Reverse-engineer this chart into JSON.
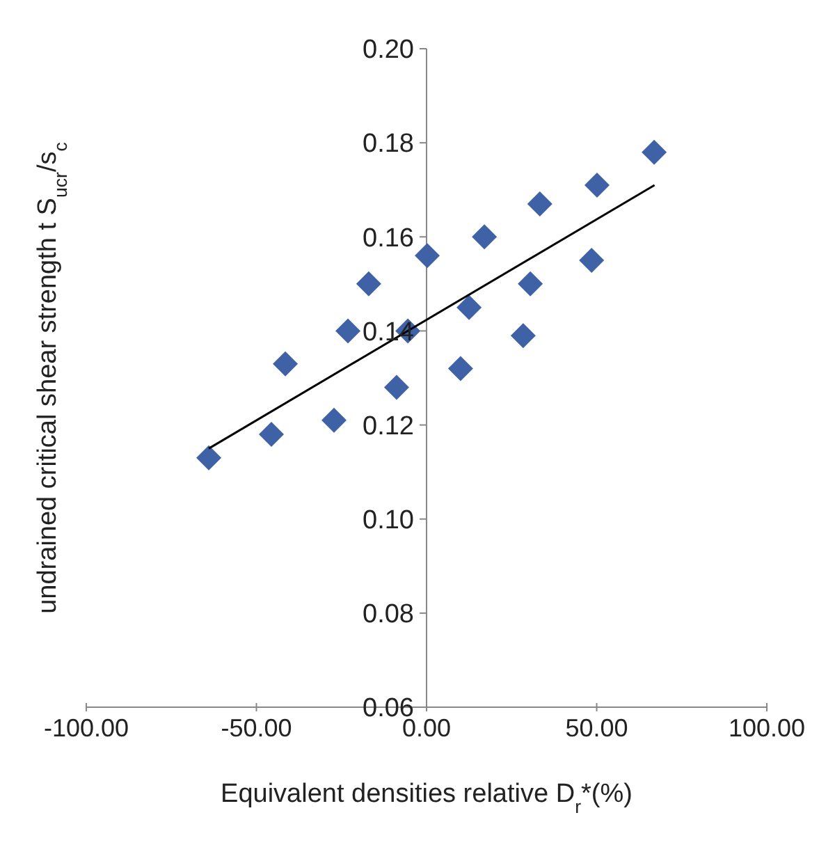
{
  "chart_data": {
    "type": "scatter",
    "xlabel": "Equivalent densities relative D$_{r}$*(%)",
    "ylabel": "undrained critical shear strength t S$_{ucr}$/s$_{c}$",
    "xlim": [
      -100,
      100
    ],
    "ylim": [
      0.06,
      0.2
    ],
    "xticks": [
      {
        "value": -100,
        "label": "-100.00"
      },
      {
        "value": -50,
        "label": "-50.00"
      },
      {
        "value": 0,
        "label": "0.00"
      },
      {
        "value": 50,
        "label": "50.00"
      },
      {
        "value": 100,
        "label": "100.00"
      }
    ],
    "yticks": [
      {
        "value": 0.06,
        "label": "0.06"
      },
      {
        "value": 0.08,
        "label": "0.08"
      },
      {
        "value": 0.1,
        "label": "0.10"
      },
      {
        "value": 0.12,
        "label": "0.12"
      },
      {
        "value": 0.14,
        "label": "0.14"
      },
      {
        "value": 0.16,
        "label": "0.16"
      },
      {
        "value": 0.18,
        "label": "0.18"
      },
      {
        "value": 0.2,
        "label": "0.20"
      }
    ],
    "grid": false,
    "legend": false,
    "marker": "diamond",
    "series": [
      {
        "color": "#3f62a6",
        "x": [
          -64,
          -45.6,
          -41.5,
          -27.2,
          -23.1,
          -17,
          -8.8,
          -5.5,
          0.2,
          10,
          12.5,
          17,
          28.4,
          30.5,
          33.3,
          48.5,
          50.1,
          66.9
        ],
        "values": [
          0.113,
          0.118,
          0.133,
          0.121,
          0.14,
          0.15,
          0.128,
          0.14,
          0.156,
          0.132,
          0.145,
          0.16,
          0.139,
          0.15,
          0.167,
          0.155,
          0.171,
          0.178
        ]
      },
      {
        "type": "line",
        "color": "#000000",
        "marker": "none",
        "x": [
          -64,
          67
        ],
        "values": [
          0.115,
          0.171
        ]
      }
    ]
  }
}
